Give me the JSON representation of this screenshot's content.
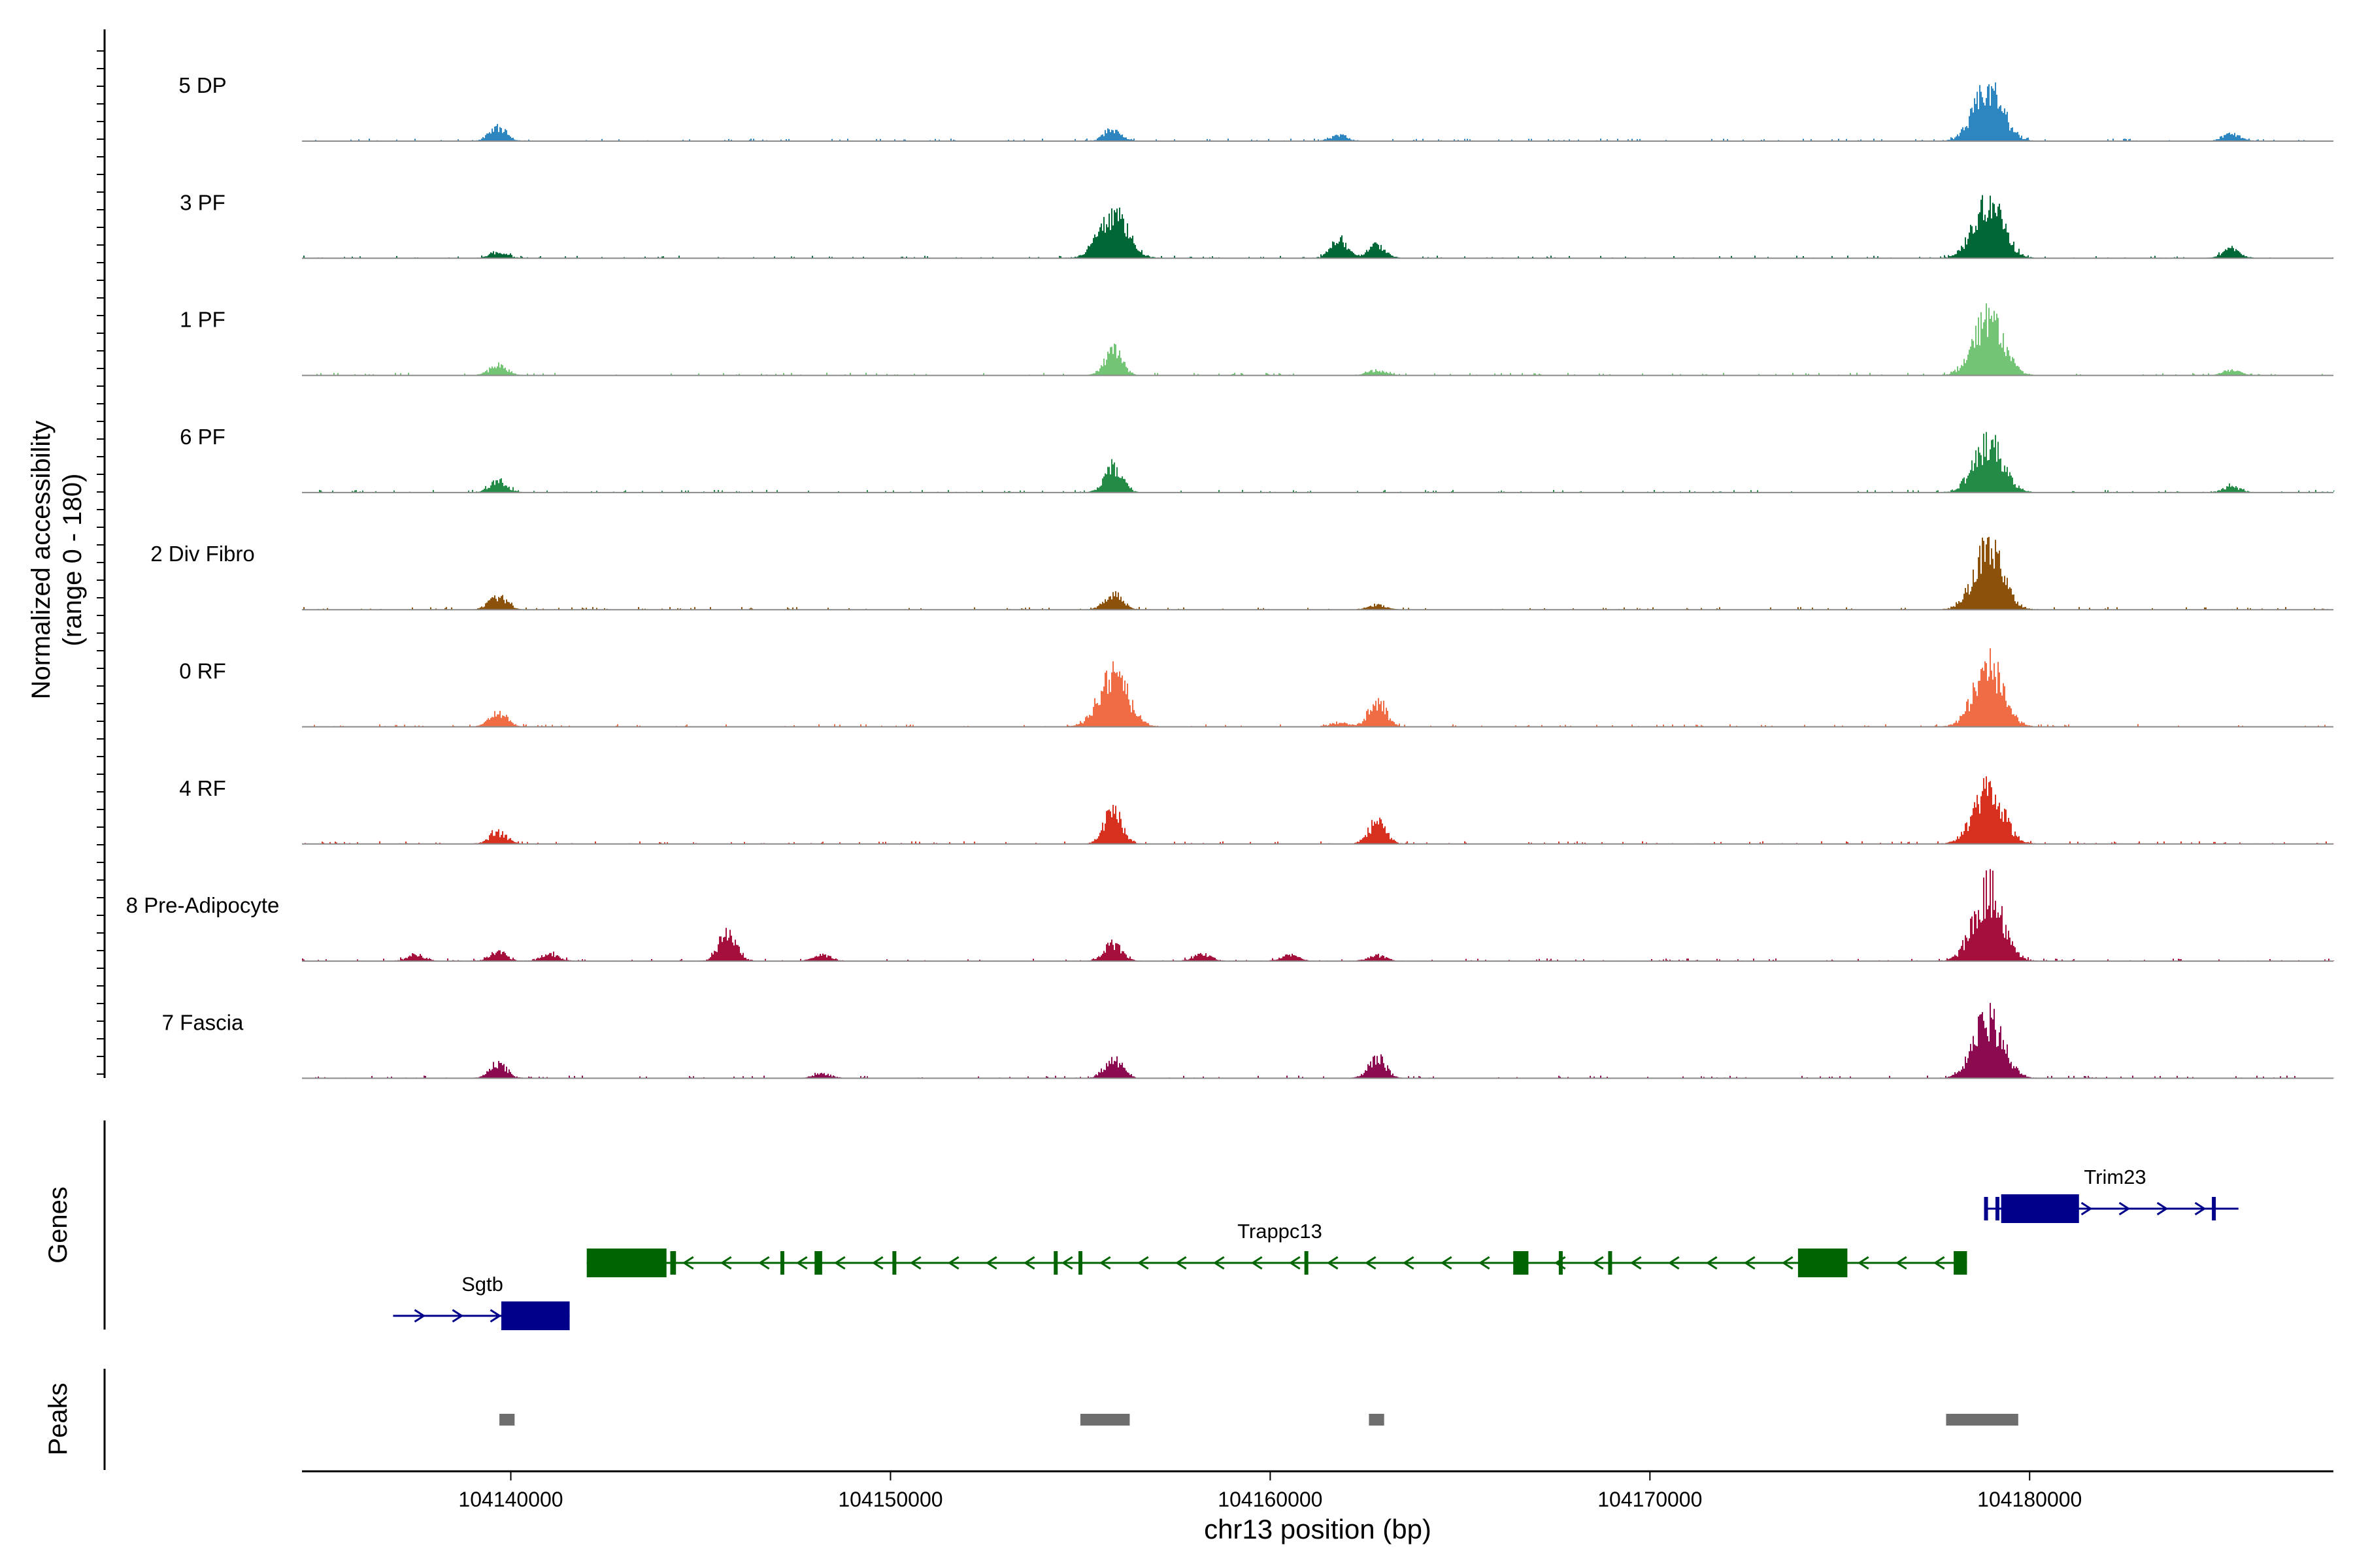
{
  "chart_data": {
    "type": "area",
    "title": "",
    "xlabel": "chr13 position (bp)",
    "ylabel": "Normalized accessibility",
    "ylabel_range": "(range 0 - 180)",
    "ylim": [
      0,
      180
    ],
    "xlim": [
      104134500,
      104188000
    ],
    "x_ticks": [
      104140000,
      104150000,
      104160000,
      104170000,
      104180000
    ],
    "x_tick_labels": [
      "104140000",
      "104150000",
      "104160000",
      "104170000",
      "104180000"
    ],
    "genes_label": "Genes",
    "peaks_label": "Peaks",
    "series": [
      {
        "name": "5 DP",
        "color": "#2e86c1",
        "peaks": [
          [
            104139650,
            45
          ],
          [
            104155850,
            40
          ],
          [
            104161800,
            18
          ],
          [
            104178900,
            180
          ],
          [
            104185300,
            25
          ]
        ]
      },
      {
        "name": "3 PF",
        "color": "#006837",
        "peaks": [
          [
            104139650,
            22
          ],
          [
            104155850,
            150
          ],
          [
            104161800,
            60
          ],
          [
            104162800,
            45
          ],
          [
            104178900,
            200
          ],
          [
            104185300,
            30
          ]
        ]
      },
      {
        "name": "1 PF",
        "color": "#74c476",
        "peaks": [
          [
            104139650,
            35
          ],
          [
            104155850,
            85
          ],
          [
            104162800,
            18
          ],
          [
            104178900,
            210
          ],
          [
            104185300,
            20
          ]
        ]
      },
      {
        "name": "6 PF",
        "color": "#238b45",
        "peaks": [
          [
            104139650,
            40
          ],
          [
            104155850,
            90
          ],
          [
            104178900,
            170
          ],
          [
            104185300,
            20
          ]
        ]
      },
      {
        "name": "2 Div Fibro",
        "color": "#8c510a",
        "peaks": [
          [
            104139650,
            45
          ],
          [
            104155850,
            55
          ],
          [
            104162800,
            15
          ],
          [
            104178900,
            210
          ]
        ]
      },
      {
        "name": "0 RF",
        "color": "#ef6c44",
        "peaks": [
          [
            104139650,
            50
          ],
          [
            104155850,
            175
          ],
          [
            104161800,
            15
          ],
          [
            104162800,
            90
          ],
          [
            104178900,
            210
          ]
        ]
      },
      {
        "name": "4 RF",
        "color": "#d7301f",
        "peaks": [
          [
            104139650,
            40
          ],
          [
            104155850,
            120
          ],
          [
            104162800,
            75
          ],
          [
            104178900,
            200
          ]
        ]
      },
      {
        "name": "8 Pre-Adipocyte",
        "color": "#a50f3c",
        "peaks": [
          [
            104137500,
            20
          ],
          [
            104139650,
            30
          ],
          [
            104141000,
            25
          ],
          [
            104145700,
            100
          ],
          [
            104148200,
            20
          ],
          [
            104155850,
            60
          ],
          [
            104158200,
            25
          ],
          [
            104160500,
            20
          ],
          [
            104162800,
            20
          ],
          [
            104178900,
            250
          ]
        ]
      },
      {
        "name": "7 Fascia",
        "color": "#8b0a50",
        "peaks": [
          [
            104139650,
            50
          ],
          [
            104148200,
            15
          ],
          [
            104155850,
            70
          ],
          [
            104162800,
            70
          ],
          [
            104178900,
            210
          ]
        ]
      }
    ],
    "genes": [
      {
        "name": "Sgtb",
        "strand": "+",
        "start": 104136900,
        "end": 104141550,
        "row": 3,
        "color": "#00008b",
        "exons": [
          [
            104139750,
            104141550
          ]
        ]
      },
      {
        "name": "Trappc13",
        "strand": "-",
        "start": 104142000,
        "end": 104178350,
        "row": 2,
        "color": "#006400",
        "exons": [
          [
            104142000,
            104144100
          ],
          [
            104144200,
            104144350
          ],
          [
            104147100,
            104147200
          ],
          [
            104148000,
            104148200
          ],
          [
            104150050,
            104150150
          ],
          [
            104154300,
            104154400
          ],
          [
            104154950,
            104155050
          ],
          [
            104160900,
            104161000
          ],
          [
            104166400,
            104166800
          ],
          [
            104167600,
            104167700
          ],
          [
            104168900,
            104169000
          ],
          [
            104173900,
            104175200
          ],
          [
            104178000,
            104178350
          ]
        ]
      },
      {
        "name": "Trim23",
        "strand": "+",
        "start": 104178800,
        "end": 104185500,
        "row": 1,
        "color": "#00008b",
        "exons": [
          [
            104178800,
            104178900
          ],
          [
            104179100,
            104179200
          ],
          [
            104179250,
            104181300
          ],
          [
            104184800,
            104184900
          ]
        ]
      }
    ],
    "peak_regions": [
      [
        104139700,
        104140100
      ],
      [
        104155000,
        104156300
      ],
      [
        104162600,
        104163000
      ],
      [
        104177800,
        104179700
      ]
    ]
  }
}
